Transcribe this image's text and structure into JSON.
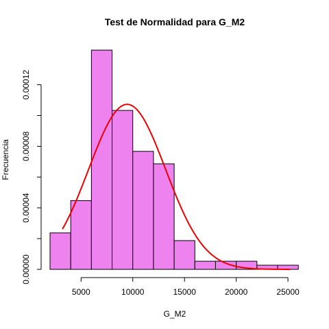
{
  "chart_data": {
    "type": "bar",
    "subtype": "histogram",
    "title": "Test de Normalidad para  G_M2",
    "xlabel": "G_M2",
    "ylabel": "Frecuencia",
    "bins": [
      {
        "start": 2000,
        "end": 4000,
        "density": 2.37e-05
      },
      {
        "start": 4000,
        "end": 6000,
        "density": 4.47e-05
      },
      {
        "start": 6000,
        "end": 8000,
        "density": 0.0001425
      },
      {
        "start": 8000,
        "end": 10000,
        "density": 0.0001033
      },
      {
        "start": 10000,
        "end": 12000,
        "density": 7.67e-05
      },
      {
        "start": 12000,
        "end": 14000,
        "density": 6.86e-05
      },
      {
        "start": 14000,
        "end": 16000,
        "density": 1.87e-05
      },
      {
        "start": 16000,
        "end": 18000,
        "density": 5.3e-06
      },
      {
        "start": 18000,
        "end": 20000,
        "density": 5.3e-06
      },
      {
        "start": 20000,
        "end": 22000,
        "density": 5.3e-06
      },
      {
        "start": 22000,
        "end": 24000,
        "density": 2.7e-06
      },
      {
        "start": 24000,
        "end": 26000,
        "density": 2.7e-06
      }
    ],
    "normal_curve": {
      "mean": 9450,
      "sd": 3720,
      "x_range": [
        3200,
        25200
      ],
      "color": "#ee0000"
    },
    "bar_color": "#ee82ee",
    "xlim": [
      2000,
      26000
    ],
    "ylim": [
      0,
      0.00014
    ],
    "x_ticks": [
      5000,
      10000,
      15000,
      20000,
      25000
    ],
    "x_tick_labels": [
      "5000",
      "10000",
      "15000",
      "20000",
      "25000"
    ],
    "y_ticks": [
      0,
      2e-05,
      4e-05,
      6e-05,
      8e-05,
      0.0001,
      0.00012
    ],
    "y_tick_labels": [
      "0.00000",
      "0.00004",
      "0.00008",
      "0.00012"
    ],
    "y_labeled_ticks": [
      0,
      4e-05,
      8e-05,
      0.00012
    ],
    "grid": false,
    "legend": "none"
  }
}
